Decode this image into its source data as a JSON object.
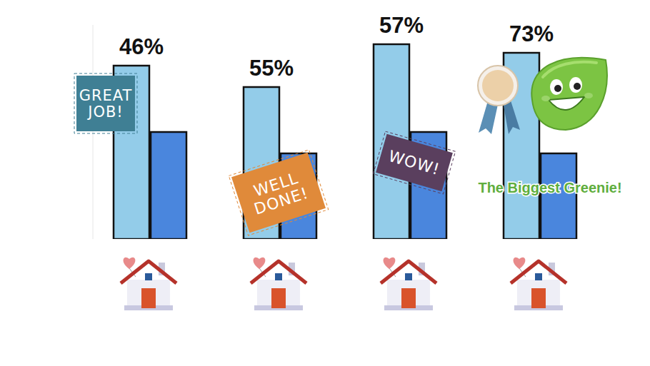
{
  "chart_data": {
    "type": "bar",
    "categories": [
      null,
      null,
      null,
      null
    ],
    "series": [
      {
        "color": "#93cce9",
        "values": [
          81,
          71,
          91,
          87
        ]
      },
      {
        "color": "#4a86dd",
        "values": [
          50,
          40,
          50,
          40
        ]
      }
    ],
    "ylim": [
      0,
      100
    ],
    "yticks": [],
    "tick_labels": false,
    "annotations": [
      "46%",
      "55%",
      "57%",
      "73%"
    ],
    "stickers": [
      "GREAT JOB!",
      "WELL DONE!",
      "WOW!",
      "The Biggest Greenie!"
    ]
  }
}
